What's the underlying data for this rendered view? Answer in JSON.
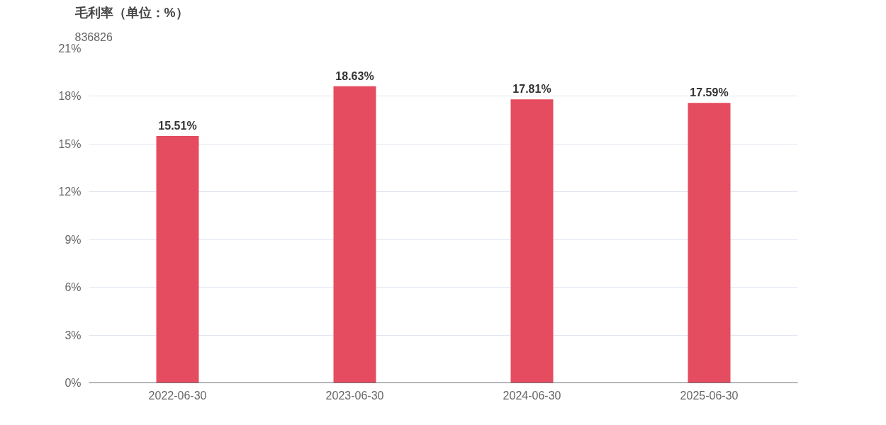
{
  "chart_data": {
    "type": "bar",
    "title": "毛利率（单位：%）",
    "subtitle": "836826",
    "categories": [
      "2022-06-30",
      "2023-06-30",
      "2024-06-30",
      "2025-06-30"
    ],
    "values": [
      15.51,
      18.63,
      17.81,
      17.59
    ],
    "value_labels": [
      "15.51%",
      "18.63%",
      "17.81%",
      "17.59%"
    ],
    "color": "#e64c5f",
    "ylim": [
      0,
      21
    ],
    "yticks": [
      {
        "value": 0,
        "label": "0%"
      },
      {
        "value": 3,
        "label": "3%"
      },
      {
        "value": 6,
        "label": "6%"
      },
      {
        "value": 9,
        "label": "9%"
      },
      {
        "value": 12,
        "label": "12%"
      },
      {
        "value": 15,
        "label": "15%"
      },
      {
        "value": 18,
        "label": "18%"
      },
      {
        "value": 21,
        "label": "21%"
      }
    ],
    "grid": "y"
  }
}
